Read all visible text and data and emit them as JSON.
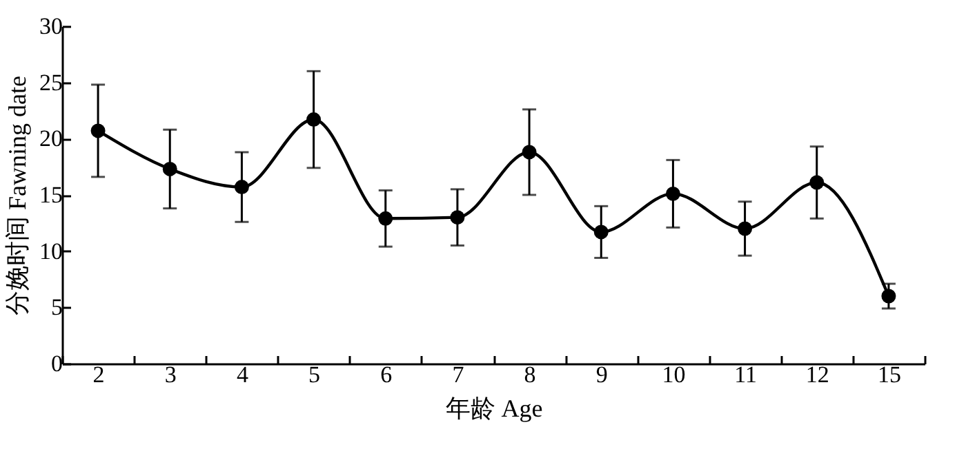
{
  "chart_data": {
    "type": "line",
    "xlabel": "年龄 Age",
    "ylabel": "分娩时间 Fawning date",
    "categories": [
      "2",
      "3",
      "4",
      "5",
      "6",
      "7",
      "8",
      "9",
      "10",
      "11",
      "12",
      "15"
    ],
    "series": [
      {
        "color": "#000000",
        "values": [
          20.7,
          17.3,
          15.7,
          21.7,
          12.9,
          13.0,
          18.8,
          11.7,
          15.1,
          12.0,
          16.1,
          6.0
        ],
        "errors": [
          4.1,
          3.5,
          3.1,
          4.3,
          2.5,
          2.5,
          3.8,
          2.3,
          3.0,
          2.4,
          3.2,
          1.1
        ]
      }
    ],
    "ylim": [
      0,
      30
    ],
    "yticks": [
      0,
      5,
      10,
      15,
      20,
      25,
      30
    ],
    "grid": false,
    "marker": "circle",
    "line_style": "solid"
  }
}
